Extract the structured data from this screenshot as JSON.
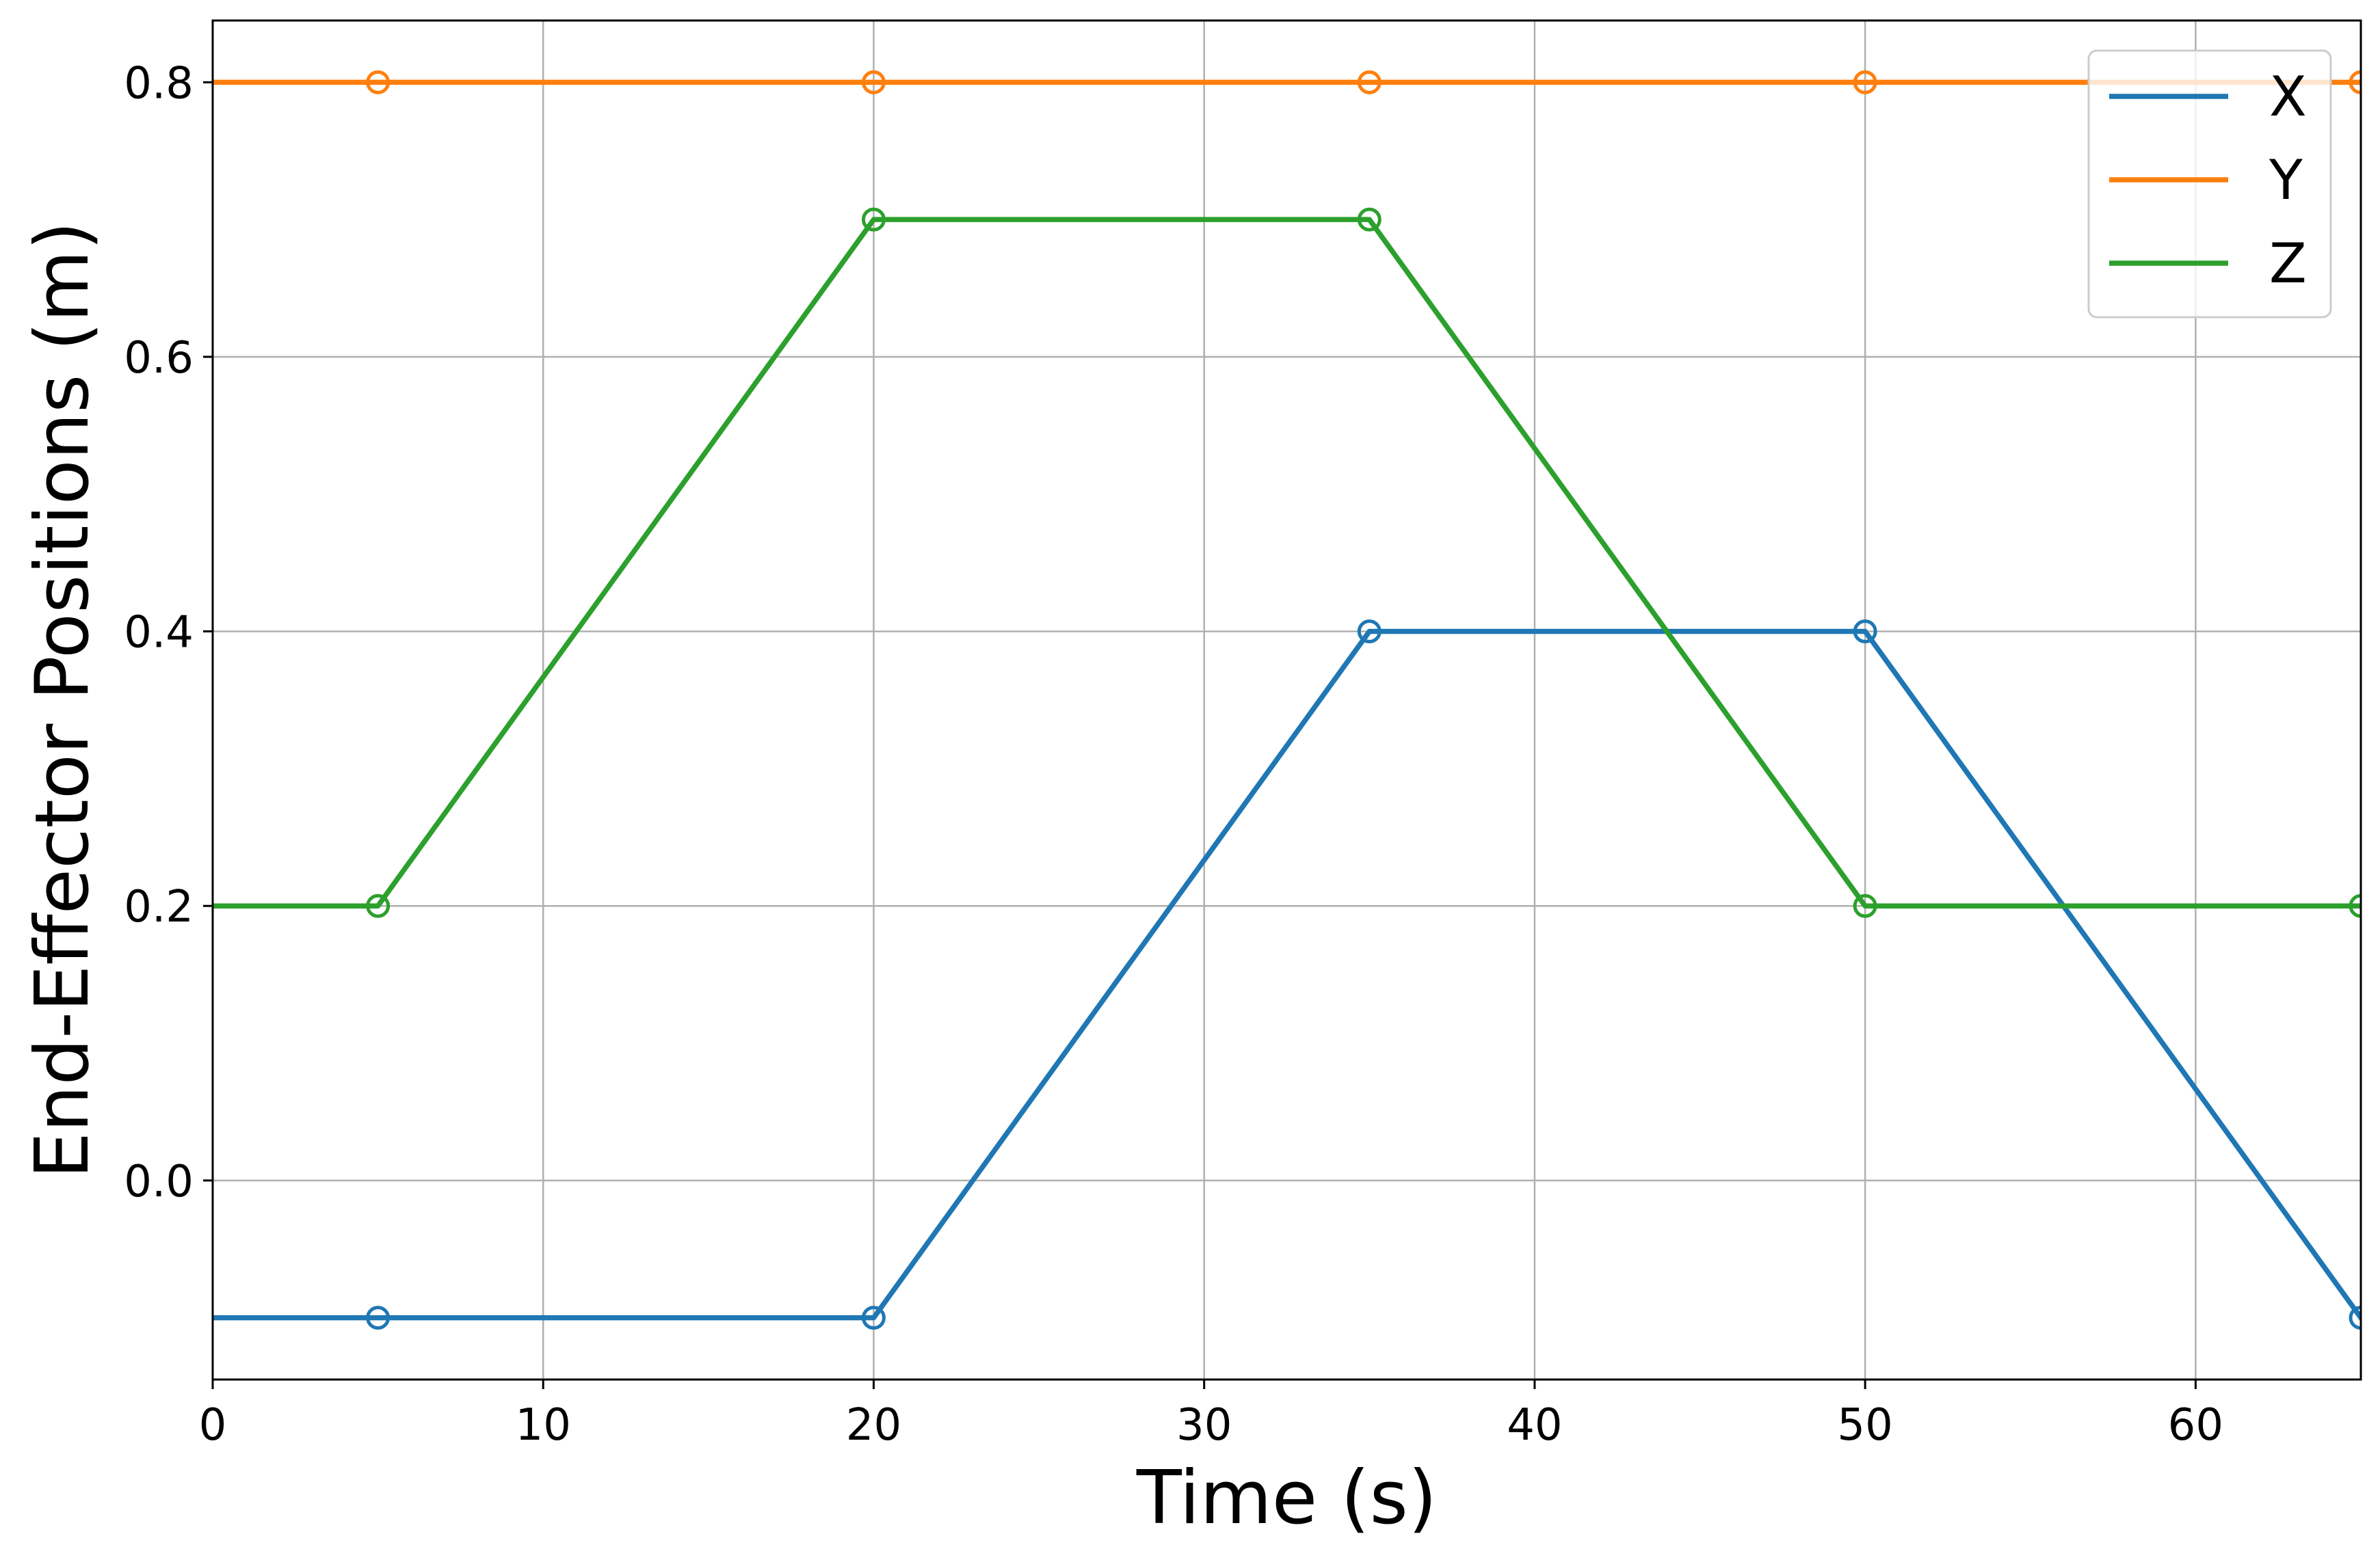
{
  "chart_data": {
    "type": "line",
    "xlabel": "Time (s)",
    "ylabel": "End-Effector Positions (m)",
    "xlim": [
      0,
      65
    ],
    "ylim": [
      -0.145,
      0.845
    ],
    "xticks": [
      0,
      10,
      20,
      30,
      40,
      50,
      60
    ],
    "xtick_labels": [
      "0",
      "10",
      "20",
      "30",
      "40",
      "50",
      "60"
    ],
    "yticks": [
      0.0,
      0.2,
      0.4,
      0.6,
      0.8
    ],
    "ytick_labels": [
      "0.0",
      "0.2",
      "0.4",
      "0.6",
      "0.8"
    ],
    "grid": true,
    "legend_position": "upper right",
    "series": [
      {
        "name": "X",
        "color": "#1f77b4",
        "line": {
          "x": [
            0,
            5,
            20,
            35,
            50,
            65
          ],
          "y": [
            -0.1,
            -0.1,
            -0.1,
            0.4,
            0.4,
            -0.1
          ]
        },
        "markers": {
          "x": [
            5,
            20,
            35,
            50,
            65
          ],
          "y": [
            -0.1,
            -0.1,
            0.4,
            0.4,
            -0.1
          ]
        }
      },
      {
        "name": "Y",
        "color": "#ff7f0e",
        "line": {
          "x": [
            0,
            5,
            20,
            35,
            50,
            65
          ],
          "y": [
            0.8,
            0.8,
            0.8,
            0.8,
            0.8,
            0.8
          ]
        },
        "markers": {
          "x": [
            5,
            20,
            35,
            50,
            65
          ],
          "y": [
            0.8,
            0.8,
            0.8,
            0.8,
            0.8
          ]
        }
      },
      {
        "name": "Z",
        "color": "#2ca02c",
        "line": {
          "x": [
            0,
            5,
            20,
            35,
            50,
            65
          ],
          "y": [
            0.2,
            0.2,
            0.7,
            0.7,
            0.2,
            0.2
          ]
        },
        "markers": {
          "x": [
            5,
            20,
            35,
            50,
            65
          ],
          "y": [
            0.2,
            0.7,
            0.7,
            0.2,
            0.2
          ]
        }
      }
    ]
  }
}
